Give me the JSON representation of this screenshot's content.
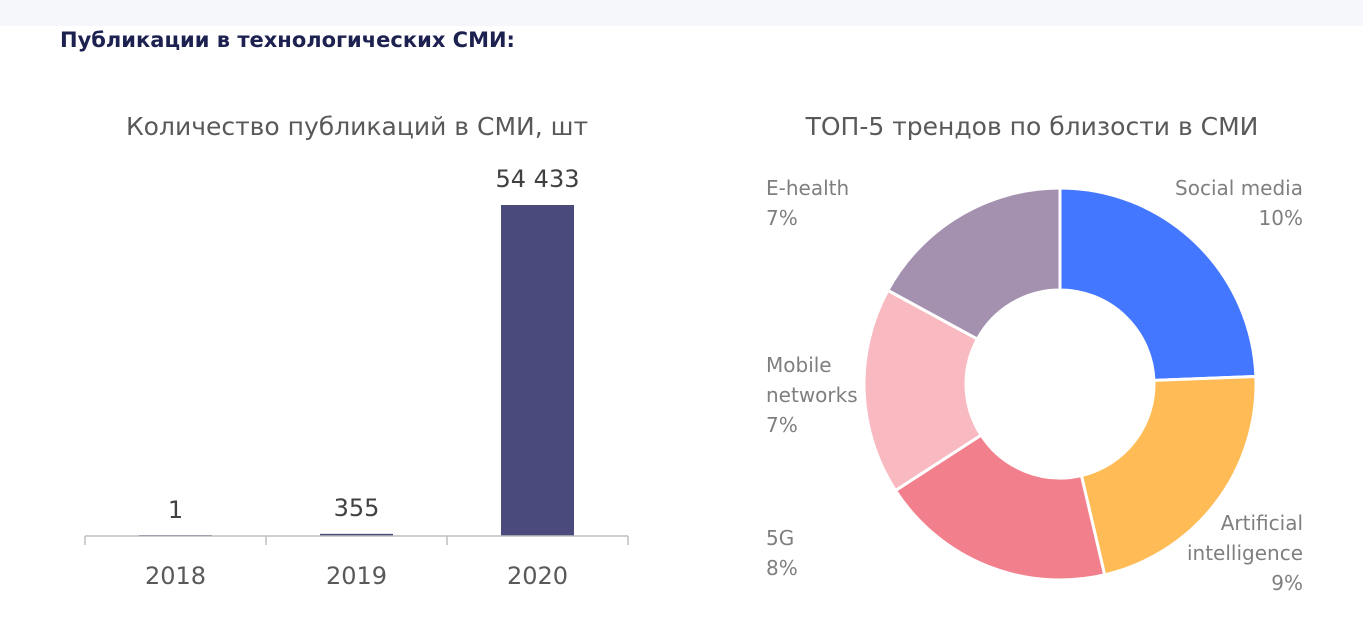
{
  "header": {
    "title": "Публикации в технологических СМИ:"
  },
  "chart_data": [
    {
      "type": "bar",
      "title": "Количество публикаций в СМИ, шт",
      "categories": [
        "2018",
        "2019",
        "2020"
      ],
      "values": [
        1,
        355,
        54433
      ],
      "data_labels": [
        "1",
        "355",
        "54 433"
      ],
      "ylim": [
        0,
        54433
      ],
      "grid": false,
      "colors": {
        "bar": "#4a4a7c",
        "axis": "#bfbfbf"
      }
    },
    {
      "type": "pie",
      "variant": "donut",
      "title": "ТОП-5 трендов по близости в СМИ",
      "slices": [
        {
          "name": "Social media",
          "value": 10,
          "label": "10%",
          "color": "#4477ff"
        },
        {
          "name": "Artificial intelligence",
          "value": 9,
          "label": "9%",
          "color": "#ffbb55"
        },
        {
          "name": "5G",
          "value": 8,
          "label": "8%",
          "color": "#f27f8c"
        },
        {
          "name": "Mobile networks",
          "value": 7,
          "label": "7%",
          "color": "#f9b9c1"
        },
        {
          "name": "E-health",
          "value": 7,
          "label": "7%",
          "color": "#a491b0"
        }
      ]
    }
  ]
}
